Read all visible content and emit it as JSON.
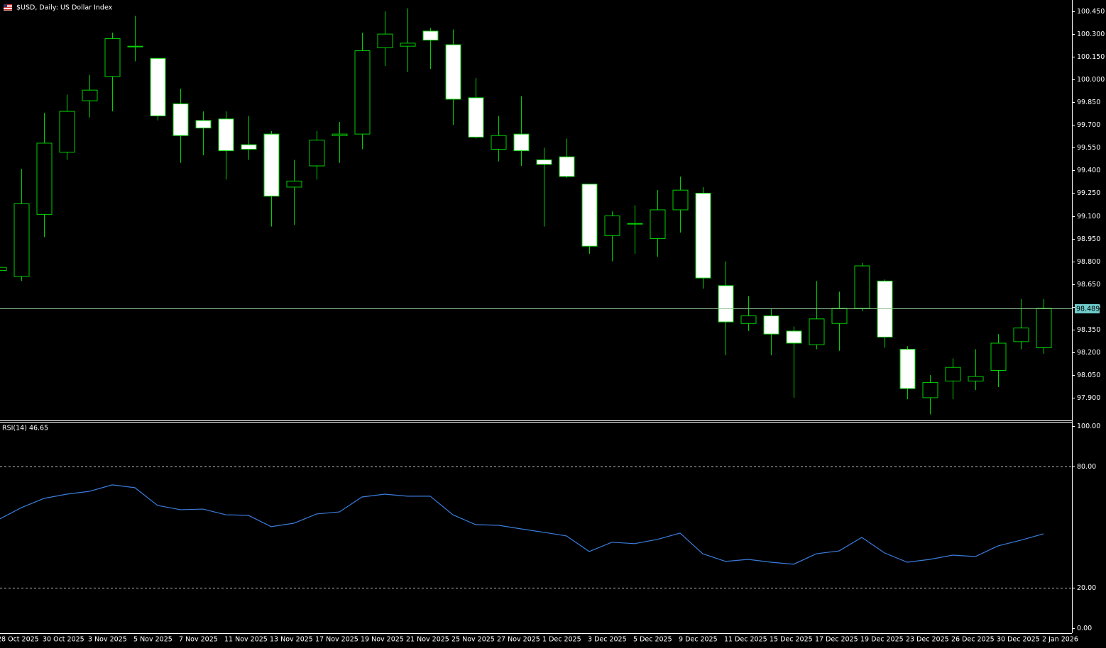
{
  "chart_data": [
    {
      "type": "candlestick",
      "title": "$USD, Daily:  US Dollar Index",
      "categories": [
        "28 Oct 2025",
        null,
        "30 Oct 2025",
        null,
        "3 Nov 2025",
        null,
        "5 Nov 2025",
        null,
        "7 Nov 2025",
        null,
        "11 Nov 2025",
        null,
        "13 Nov 2025",
        null,
        "17 Nov 2025",
        null,
        "19 Nov 2025",
        null,
        "21 Nov 2025",
        null,
        "25 Nov 2025",
        null,
        "27 Nov 2025",
        null,
        "1 Dec 2025",
        null,
        "3 Dec 2025",
        null,
        "5 Dec 2025",
        null,
        "9 Dec 2025",
        null,
        "11 Dec 2025",
        null,
        "15 Dec 2025",
        null,
        "17 Dec 2025",
        null,
        "19 Dec 2025",
        null,
        "23 Dec 2025",
        null,
        "26 Dec 2025",
        null,
        "30 Dec 2025",
        null,
        "2 Jan 2026"
      ],
      "open": [
        98.74,
        98.7,
        99.11,
        99.52,
        99.86,
        100.02,
        100.22,
        100.14,
        99.84,
        99.73,
        99.74,
        99.57,
        99.64,
        99.29,
        99.43,
        99.63,
        99.64,
        100.21,
        100.22,
        100.32,
        100.23,
        99.88,
        99.54,
        99.64,
        99.47,
        99.49,
        99.31,
        98.97,
        99.05,
        98.95,
        99.14,
        99.25,
        98.64,
        98.39,
        98.44,
        98.34,
        98.25,
        98.39,
        98.49,
        98.67,
        98.22,
        97.9,
        98.01,
        98.01,
        98.08,
        98.27,
        98.23
      ],
      "high": [
        98.78,
        99.41,
        99.78,
        99.9,
        100.03,
        100.31,
        100.42,
        100.14,
        99.94,
        99.79,
        99.79,
        99.76,
        99.66,
        99.47,
        99.66,
        99.72,
        100.31,
        100.45,
        100.47,
        100.34,
        100.33,
        100.01,
        99.76,
        99.89,
        99.55,
        99.61,
        99.31,
        99.13,
        99.17,
        99.27,
        99.36,
        99.29,
        98.8,
        98.57,
        98.49,
        98.37,
        98.67,
        98.6,
        98.79,
        98.68,
        98.24,
        98.05,
        98.16,
        98.22,
        98.32,
        98.55,
        98.55
      ],
      "low": [
        98.72,
        98.67,
        98.96,
        99.47,
        99.75,
        99.79,
        100.12,
        99.73,
        99.45,
        99.5,
        99.34,
        99.47,
        99.03,
        99.04,
        99.34,
        99.45,
        99.54,
        100.09,
        100.05,
        100.07,
        99.7,
        99.61,
        99.46,
        99.43,
        99.03,
        99.35,
        98.85,
        98.8,
        98.85,
        98.83,
        98.99,
        98.62,
        98.18,
        98.34,
        98.18,
        97.9,
        98.22,
        98.21,
        98.47,
        98.23,
        97.89,
        97.79,
        97.89,
        97.95,
        97.97,
        98.22,
        98.19
      ],
      "close": [
        98.76,
        99.18,
        99.58,
        99.79,
        99.93,
        100.27,
        100.22,
        99.76,
        99.63,
        99.68,
        99.53,
        99.54,
        99.23,
        99.33,
        99.6,
        99.64,
        100.19,
        100.3,
        100.24,
        100.26,
        99.87,
        99.62,
        99.63,
        99.53,
        99.44,
        99.36,
        98.9,
        99.1,
        99.05,
        99.14,
        99.27,
        98.69,
        98.4,
        98.44,
        98.32,
        98.26,
        98.42,
        98.49,
        98.77,
        98.3,
        97.96,
        98.0,
        98.1,
        98.04,
        98.26,
        98.36,
        98.49
      ],
      "color": "#00d000",
      "up_color": "#000000",
      "down_color": "#ffffff",
      "price_line": 98.489,
      "price_line_color": "#8fc08f",
      "ylim": [
        97.75,
        100.525
      ],
      "yticks": [
        {
          "value": 100.45,
          "label": "100.450"
        },
        {
          "value": 100.3,
          "label": "100.300"
        },
        {
          "value": 100.15,
          "label": "100.150"
        },
        {
          "value": 100,
          "label": "100.000"
        },
        {
          "value": 99.85,
          "label": "99.850"
        },
        {
          "value": 99.7,
          "label": "99.700"
        },
        {
          "value": 99.55,
          "label": "99.550"
        },
        {
          "value": 99.4,
          "label": "99.400"
        },
        {
          "value": 99.25,
          "label": "99.250"
        },
        {
          "value": 99.1,
          "label": "99.100"
        },
        {
          "value": 98.95,
          "label": "98.950"
        },
        {
          "value": 98.8,
          "label": "98.800"
        },
        {
          "value": 98.65,
          "label": "98.650"
        },
        {
          "value": 98.5,
          "label": "98.500"
        },
        {
          "value": 98.35,
          "label": "98.350"
        },
        {
          "value": 98.2,
          "label": "98.200"
        },
        {
          "value": 98.05,
          "label": "98.050"
        },
        {
          "value": 97.9,
          "label": "97.900"
        }
      ]
    },
    {
      "type": "line",
      "title": "RSI(14) 46.65",
      "values": [
        53.7,
        59.6,
        64.2,
        66.3,
        67.7,
        70.9,
        69.5,
        60.7,
        58.6,
        58.9,
        56.1,
        55.8,
        50.2,
        51.9,
        56.5,
        57.5,
        64.9,
        66.3,
        65.3,
        65.3,
        56.1,
        51.2,
        50.9,
        49.1,
        47.4,
        45.6,
        37.9,
        42.5,
        41.8,
        43.9,
        47.0,
        36.8,
        33.0,
        34.0,
        32.6,
        31.6,
        36.8,
        38.2,
        44.9,
        37.2,
        32.6,
        34.0,
        36.1,
        35.4,
        40.7,
        43.5,
        46.65
      ],
      "color": "#3b7ddd",
      "ylim": [
        -2.5,
        101.75
      ],
      "yticks": [
        {
          "value": 100,
          "label": "100.00"
        },
        {
          "value": 80,
          "label": "80.00"
        },
        {
          "value": 20,
          "label": "20.00"
        },
        {
          "value": 0,
          "label": "0.00"
        }
      ],
      "levels": [
        20,
        80
      ]
    }
  ]
}
